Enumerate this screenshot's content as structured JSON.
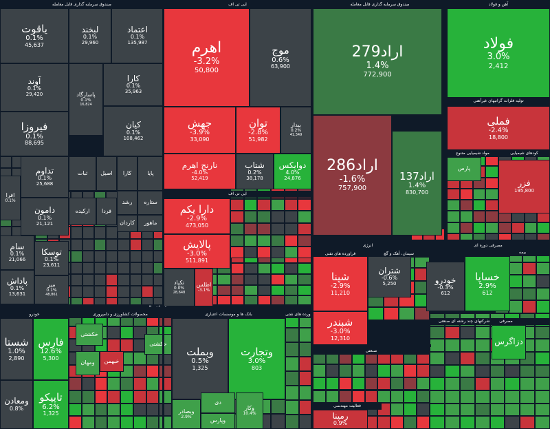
{
  "colors": {
    "strong_green": "#27b23a",
    "green": "#3fa04a",
    "dark_green": "#3a7a45",
    "grey": "#3c4348",
    "red": "#c8343b",
    "bright_red": "#e8373d",
    "dark_red": "#8c3a40",
    "background": "#0f1a28"
  },
  "sectors": [
    {
      "name": "صندوق سرمایه گذاری قابل معامله"
    },
    {
      "name": "فلزات اساسی"
    },
    {
      "name": "محصولات شیمیایی"
    },
    {
      "name": "خدمات مالی"
    },
    {
      "name": "بانک ها و موسسات اعتباری"
    },
    {
      "name": "فراورده های نفتی"
    },
    {
      "name": "صنعتی"
    },
    {
      "name": "فعالیت مهندسی"
    },
    {
      "name": "شرکتهای چند رشته ای صنعتی"
    },
    {
      "name": "بیمه"
    },
    {
      "name": "ساخت محصولات فلزی"
    },
    {
      "name": "حمل و نقل"
    },
    {
      "name": "رایانه"
    },
    {
      "name": "ایی تی اف"
    },
    {
      "name": "مصرفی دوره ای"
    },
    {
      "name": "بهداشتی"
    },
    {
      "name": "عرضه برق"
    },
    {
      "name": "ساخت محصولات فلزی"
    },
    {
      "name": "آهن و فولاد"
    },
    {
      "name": "تولید فلزات گرانبهای غیرآهنی"
    },
    {
      "name": "مواد شیمیایی متنوع"
    },
    {
      "name": "کودهای شیمیایی"
    },
    {
      "name": "ذخیره و ارائه خدمات تیراژ"
    },
    {
      "name": "انرژی"
    },
    {
      "name": "فراورده های نفتی"
    },
    {
      "name": "سیمان، آهک و گچ"
    },
    {
      "name": "بیمه"
    },
    {
      "name": "مصرفی غیر دوره ای"
    },
    {
      "name": "خودرو"
    },
    {
      "name": "محصولات کشاورزی و دامپروری"
    },
    {
      "name": "خدمات فنی مهندسی"
    },
    {
      "name": "وسایل ارتباطی"
    },
    {
      "name": "محصولات فلزی"
    },
    {
      "name": "تایر"
    },
    {
      "name": "بورس"
    },
    {
      "name": "نرم افزار"
    }
  ],
  "tiles": [
    {
      "symbol": "یاقوت",
      "change": "0.1%",
      "volume": "45,637"
    },
    {
      "symbol": "لبخند",
      "change": "0.1%",
      "volume": "29,960"
    },
    {
      "symbol": "اعتماد",
      "change": "0.1%",
      "volume": "135,987"
    },
    {
      "symbol": "آوند",
      "change": "0.1%",
      "volume": "29,420"
    },
    {
      "symbol": "پاسارگاد",
      "change": "0.1%",
      "volume": "16,824"
    },
    {
      "symbol": "کارا",
      "change": "0.1%",
      "volume": "35,963"
    },
    {
      "symbol": "فیروزا",
      "change": "0.1%",
      "volume": "88,695"
    },
    {
      "symbol": "کیان",
      "change": "0.1%",
      "volume": "108,462"
    },
    {
      "symbol": "تداوم",
      "change": "0.1%",
      "volume": "25,688"
    },
    {
      "symbol": "ثبات",
      "change": "",
      "volume": ""
    },
    {
      "symbol": "اصیل",
      "change": "",
      "volume": ""
    },
    {
      "symbol": "کارا",
      "change": "",
      "volume": ""
    },
    {
      "symbol": "پایا",
      "change": "",
      "volume": ""
    },
    {
      "symbol": "افرا",
      "change": "0.1%",
      "volume": ""
    },
    {
      "symbol": "دامون",
      "change": "0.1%",
      "volume": "21,121"
    },
    {
      "symbol": "ارکیده",
      "change": "",
      "volume": ""
    },
    {
      "symbol": "فردا",
      "change": "",
      "volume": ""
    },
    {
      "symbol": "رشد",
      "change": "",
      "volume": ""
    },
    {
      "symbol": "ستاره",
      "change": "",
      "volume": ""
    },
    {
      "symbol": "کاردان",
      "change": "",
      "volume": ""
    },
    {
      "symbol": "ماهور",
      "change": "",
      "volume": ""
    },
    {
      "symbol": "سام",
      "change": "0.1%",
      "volume": "21,066"
    },
    {
      "symbol": "توسکا",
      "change": "0.1%",
      "volume": "23,611"
    },
    {
      "symbol": "پاداش",
      "change": "0.1%",
      "volume": "13,631"
    },
    {
      "symbol": "میر",
      "change": "0.1%",
      "volume": "48,861"
    },
    {
      "symbol": "اهرم",
      "change": "-3.2%",
      "volume": "50,800"
    },
    {
      "symbol": "موج",
      "change": "0.6%",
      "volume": "63,900"
    },
    {
      "symbol": "جهش",
      "change": "-3.9%",
      "volume": "33,090"
    },
    {
      "symbol": "توان",
      "change": "-2.8%",
      "volume": "51,982"
    },
    {
      "symbol": "بیدار",
      "change": "0.2%",
      "volume": "41,349"
    },
    {
      "symbol": "نارنج اهرم",
      "change": "-4.0%",
      "volume": "52,419"
    },
    {
      "symbol": "شتاب",
      "change": "0.2%",
      "volume": "38,178"
    },
    {
      "symbol": "دوایکس",
      "change": "4.0%",
      "volume": "24,876"
    },
    {
      "symbol": "دارا یکم",
      "change": "-2.9%",
      "volume": "473,050"
    },
    {
      "symbol": "پالایش",
      "change": "-3.0%",
      "volume": "511,891"
    },
    {
      "symbol": "تکپاد",
      "change": "0.0%",
      "volume": "28,648"
    },
    {
      "symbol": "اطلس",
      "change": "-3.1%",
      "volume": ""
    },
    {
      "symbol": "اراد279",
      "change": "1.4%",
      "volume": "772,900"
    },
    {
      "symbol": "اراد286",
      "change": "-1.6%",
      "volume": "757,900"
    },
    {
      "symbol": "اراد137",
      "change": "1.4%",
      "volume": "830,700"
    },
    {
      "symbol": "فولاد",
      "change": "3.0%",
      "volume": "2,412"
    },
    {
      "symbol": "فملی",
      "change": "-2.4%",
      "volume": "18,800"
    },
    {
      "symbol": "پارس",
      "change": "",
      "volume": ""
    },
    {
      "symbol": "فزر",
      "change": "",
      "volume": "195,800"
    },
    {
      "symbol": "شپنا",
      "change": "-2.9%",
      "volume": "11,210"
    },
    {
      "symbol": "شتران",
      "change": "-0.6%",
      "volume": "5,250"
    },
    {
      "symbol": "شبندر",
      "change": "-3.0%",
      "volume": "12,310"
    },
    {
      "symbol": "خساپا",
      "change": "2.9%",
      "volume": "612"
    },
    {
      "symbol": "خودرو",
      "change": "-0.3%",
      "volume": "612"
    },
    {
      "symbol": "دزاگرس",
      "change": "",
      "volume": ""
    },
    {
      "symbol": "شستا",
      "change": "1.0%",
      "volume": "2,890"
    },
    {
      "symbol": "فارس",
      "change": "12.6%",
      "volume": "5,300"
    },
    {
      "symbol": "تاپیکو",
      "change": "6.2%",
      "volume": "1,325"
    },
    {
      "symbol": "ومعادن",
      "change": "0.8%",
      "volume": ""
    },
    {
      "symbol": "وبملت",
      "change": "0.5%",
      "volume": "1,325"
    },
    {
      "symbol": "وتجارت",
      "change": "3.0%",
      "volume": "803"
    },
    {
      "symbol": "وبصادر",
      "change": "2.9%",
      "volume": ""
    },
    {
      "symbol": "وکار",
      "change": "10.4%",
      "volume": ""
    },
    {
      "symbol": "رمپنا",
      "change": "0.9%",
      "volume": ""
    },
    {
      "symbol": "خکشتی",
      "change": "",
      "volume": ""
    },
    {
      "symbol": "حکشتی",
      "change": "",
      "volume": ""
    },
    {
      "symbol": "خبهمن",
      "change": "",
      "volume": ""
    },
    {
      "symbol": "ومهان",
      "change": "",
      "volume": ""
    },
    {
      "symbol": "دی",
      "change": "",
      "volume": ""
    },
    {
      "symbol": "وپارس",
      "change": "",
      "volume": ""
    }
  ]
}
